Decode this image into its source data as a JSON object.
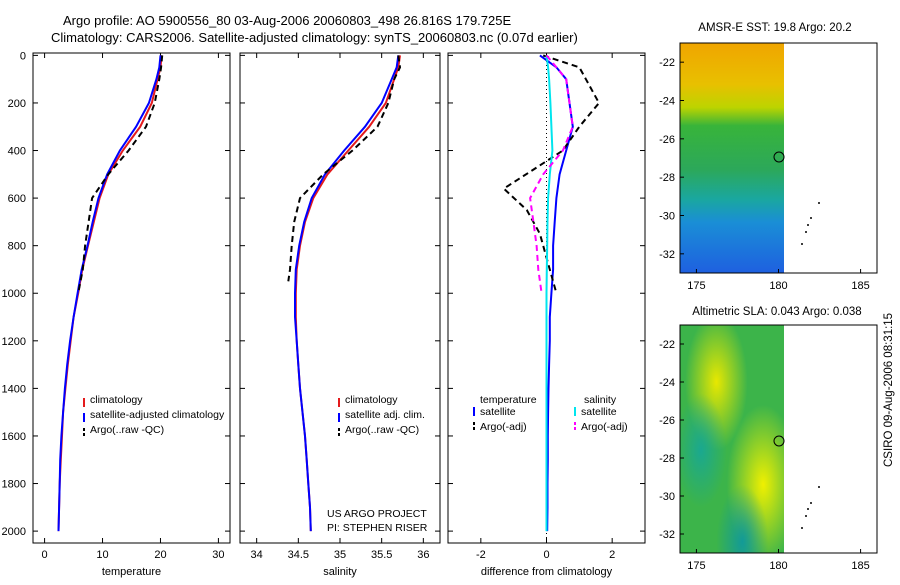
{
  "header": {
    "line1": "Argo profile: AO 5900556_80 03-Aug-2006 20060803_498 26.816S 179.725E",
    "line2": "Climatology: CARS2006. Satellite-adjusted climatology: synTS_20060803.nc (0.07d earlier)"
  },
  "colors": {
    "climatology": "#e41a1c",
    "satellite": "#0000ff",
    "argo": "#000000",
    "salinity_sat": "#00e5ee",
    "salinity_argo": "#ff00ff"
  },
  "chart_data": [
    {
      "id": "temperature",
      "type": "line",
      "xlabel": "temperature",
      "xlim": [
        -2,
        32
      ],
      "ylim": [
        2050,
        -10
      ],
      "xticks": [
        0,
        10,
        20,
        30
      ],
      "yticks": [
        0,
        200,
        400,
        600,
        800,
        1000,
        1200,
        1400,
        1600,
        1800,
        2000
      ],
      "series": [
        {
          "name": "climatology",
          "color": "#e41a1c",
          "dash": "",
          "x": [
            20.2,
            20.0,
            19.5,
            18.5,
            16.5,
            13.5,
            11.0,
            9.5,
            8.5,
            7.5,
            6.5,
            5.8,
            5.0,
            4.5,
            4.0,
            3.6,
            3.2,
            3.0,
            2.8,
            2.6,
            2.5,
            2.4
          ],
          "y": [
            0,
            50,
            100,
            200,
            300,
            400,
            500,
            600,
            700,
            800,
            900,
            1000,
            1100,
            1200,
            1300,
            1400,
            1500,
            1600,
            1700,
            1800,
            1900,
            2000
          ]
        },
        {
          "name": "satellite-adjusted climatology",
          "color": "#0000ff",
          "dash": "",
          "x": [
            20.0,
            19.8,
            19.3,
            18.0,
            15.8,
            13.0,
            10.8,
            9.3,
            8.3,
            7.4,
            6.4,
            5.7,
            5.0,
            4.4,
            3.9,
            3.5,
            3.2,
            2.9,
            2.7,
            2.6,
            2.5,
            2.4
          ],
          "y": [
            0,
            50,
            100,
            200,
            300,
            400,
            500,
            600,
            700,
            800,
            900,
            1000,
            1100,
            1200,
            1300,
            1400,
            1500,
            1600,
            1700,
            1800,
            1900,
            2000
          ]
        },
        {
          "name": "Argo(..raw -QC)",
          "color": "#000000",
          "dash": "6,4",
          "x": [
            20.3,
            20.1,
            19.8,
            19.0,
            17.5,
            14.5,
            11.0,
            8.2,
            7.6,
            7.0,
            6.6,
            5.8
          ],
          "y": [
            0,
            50,
            100,
            200,
            300,
            400,
            500,
            600,
            700,
            800,
            900,
            1000
          ]
        }
      ],
      "legend": [
        "climatology",
        "satellite-adjusted climatology",
        "Argo(..raw -QC)"
      ]
    },
    {
      "id": "salinity",
      "type": "line",
      "xlabel": "salinity",
      "xlim": [
        33.8,
        36.2
      ],
      "ylim": [
        2050,
        -10
      ],
      "xticks": [
        34,
        34.5,
        35,
        35.5,
        36
      ],
      "series": [
        {
          "name": "climatology",
          "color": "#e41a1c",
          "dash": "",
          "x": [
            35.72,
            35.7,
            35.65,
            35.55,
            35.35,
            35.1,
            34.85,
            34.68,
            34.58,
            34.52,
            34.48,
            34.47,
            34.47,
            34.48,
            34.5,
            34.52,
            34.55,
            34.58,
            34.6,
            34.62,
            34.64,
            34.65
          ],
          "y": [
            0,
            50,
            100,
            200,
            300,
            400,
            500,
            600,
            700,
            800,
            900,
            1000,
            1100,
            1200,
            1300,
            1400,
            1500,
            1600,
            1700,
            1800,
            1900,
            2000
          ]
        },
        {
          "name": "satellite adj. clim.",
          "color": "#0000ff",
          "dash": "",
          "x": [
            35.7,
            35.68,
            35.62,
            35.5,
            35.3,
            35.05,
            34.82,
            34.66,
            34.57,
            34.51,
            34.47,
            34.46,
            34.46,
            34.48,
            34.5,
            34.52,
            34.55,
            34.58,
            34.6,
            34.62,
            34.64,
            34.65
          ],
          "y": [
            0,
            50,
            100,
            200,
            300,
            400,
            500,
            600,
            700,
            800,
            900,
            1000,
            1100,
            1200,
            1300,
            1400,
            1500,
            1600,
            1700,
            1800,
            1900,
            2000
          ]
        },
        {
          "name": "Argo(..raw -QC)",
          "color": "#000000",
          "dash": "6,4",
          "x": [
            35.7,
            35.72,
            35.65,
            35.58,
            35.45,
            35.15,
            34.8,
            34.52,
            34.45,
            34.42,
            34.4,
            34.38
          ],
          "y": [
            0,
            50,
            100,
            200,
            300,
            400,
            500,
            600,
            700,
            800,
            900,
            950
          ]
        }
      ],
      "legend": [
        "climatology",
        "satellite adj. clim.",
        "Argo(..raw -QC)"
      ],
      "annotation": [
        "US ARGO PROJECT",
        "PI: STEPHEN RISER"
      ]
    },
    {
      "id": "difference",
      "type": "line",
      "xlabel": "difference from climatology",
      "xlim": [
        -3,
        3
      ],
      "ylim": [
        2050,
        -10
      ],
      "xticks": [
        -2,
        0,
        2
      ],
      "series": [
        {
          "name": "temperature satellite",
          "color": "#0000ff",
          "dash": "",
          "x": [
            -0.2,
            0.3,
            0.6,
            0.7,
            0.8,
            0.6,
            0.4,
            0.3,
            0.25,
            0.2,
            0.2,
            0.15,
            0.1,
            0.1,
            0.08,
            0.06,
            0.05,
            0.04,
            0.04,
            0.03,
            0.03,
            0.02
          ],
          "y": [
            0,
            50,
            100,
            200,
            300,
            400,
            500,
            600,
            700,
            800,
            900,
            1000,
            1100,
            1200,
            1300,
            1400,
            1500,
            1600,
            1700,
            1800,
            1900,
            2000
          ]
        },
        {
          "name": "temperature Argo(-adj)",
          "color": "#000000",
          "dash": "6,4",
          "x": [
            -0.1,
            1.0,
            1.2,
            1.6,
            1.0,
            0.5,
            -0.4,
            -1.3,
            -0.6,
            -0.2,
            0.1,
            0.3
          ],
          "y": [
            0,
            50,
            100,
            200,
            300,
            400,
            480,
            560,
            650,
            750,
            900,
            1000
          ]
        },
        {
          "name": "salinity satellite",
          "color": "#00e5ee",
          "dash": "",
          "x": [
            0.0,
            0.05,
            0.08,
            0.12,
            0.15,
            0.18,
            0.1,
            0.05,
            0.03,
            0.02,
            0.01,
            0.0,
            0.0,
            0.0,
            0.0,
            0.0,
            0.0,
            0.0,
            0.0,
            0.0,
            0.0,
            0.0
          ],
          "y": [
            0,
            50,
            100,
            200,
            300,
            400,
            500,
            600,
            700,
            800,
            900,
            1000,
            1100,
            1200,
            1300,
            1400,
            1500,
            1600,
            1700,
            1800,
            1900,
            2000
          ]
        },
        {
          "name": "salinity Argo(-adj)",
          "color": "#ff00ff",
          "dash": "6,4",
          "x": [
            0.0,
            0.3,
            0.6,
            0.7,
            0.8,
            0.5,
            -0.1,
            -0.5,
            -0.4,
            -0.3,
            -0.25,
            -0.15
          ],
          "y": [
            0,
            50,
            100,
            200,
            300,
            400,
            500,
            600,
            700,
            800,
            900,
            1000
          ]
        }
      ],
      "legend_left_title": "temperature",
      "legend_right_title": "salinity",
      "legend_left": [
        "satellite",
        "Argo(-adj)"
      ],
      "legend_right": [
        "satellite",
        "Argo(-adj)"
      ]
    }
  ],
  "maps": [
    {
      "title": "AMSR-E SST: 19.8 Argo: 20.2",
      "xticks": [
        175,
        180,
        185
      ],
      "yticks": [
        -22,
        -24,
        -26,
        -28,
        -30,
        -32
      ]
    },
    {
      "title": "Altimetric SLA: 0.043 Argo: 0.038",
      "xticks": [
        175,
        180,
        185
      ],
      "yticks": [
        -22,
        -24,
        -26,
        -28,
        -30,
        -32
      ]
    }
  ],
  "footer_vertical": "CSIRO 09-Aug-2006 08:31:15"
}
